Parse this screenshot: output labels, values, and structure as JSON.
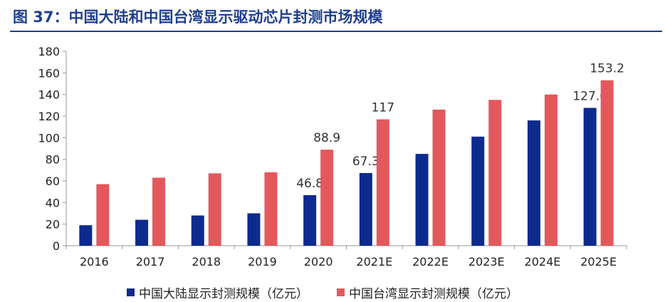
{
  "figure": {
    "title": "图 37：中国大陆和中国台湾显示驱动芯片封测市场规模"
  },
  "colors": {
    "title": "#1f3f8f",
    "series_mainland": "#0d2a8f",
    "series_taiwan": "#e4585c"
  },
  "chart_data": {
    "type": "bar",
    "categories": [
      "2016",
      "2017",
      "2018",
      "2019",
      "2020",
      "2021E",
      "2022E",
      "2023E",
      "2024E",
      "2025E"
    ],
    "series": [
      {
        "name": "中国大陆显示封测规模（亿元）",
        "values": [
          19,
          24,
          28,
          30,
          46.8,
          67.3,
          85,
          101,
          116,
          127.6
        ],
        "labels": [
          "",
          "",
          "",
          "",
          "46.8",
          "67.3",
          "",
          "",
          "",
          "127.6"
        ]
      },
      {
        "name": "中国台湾显示封测规模（亿元）",
        "values": [
          57,
          63,
          67,
          68,
          88.9,
          117,
          126,
          135,
          140,
          153.2
        ],
        "labels": [
          "",
          "",
          "",
          "",
          "88.9",
          "117",
          "",
          "",
          "",
          "153.2"
        ]
      }
    ],
    "ylim": [
      0,
      180
    ],
    "yticks": [
      0,
      20,
      40,
      60,
      80,
      100,
      120,
      140,
      160,
      180
    ],
    "grid": false,
    "legend_position": "bottom"
  }
}
